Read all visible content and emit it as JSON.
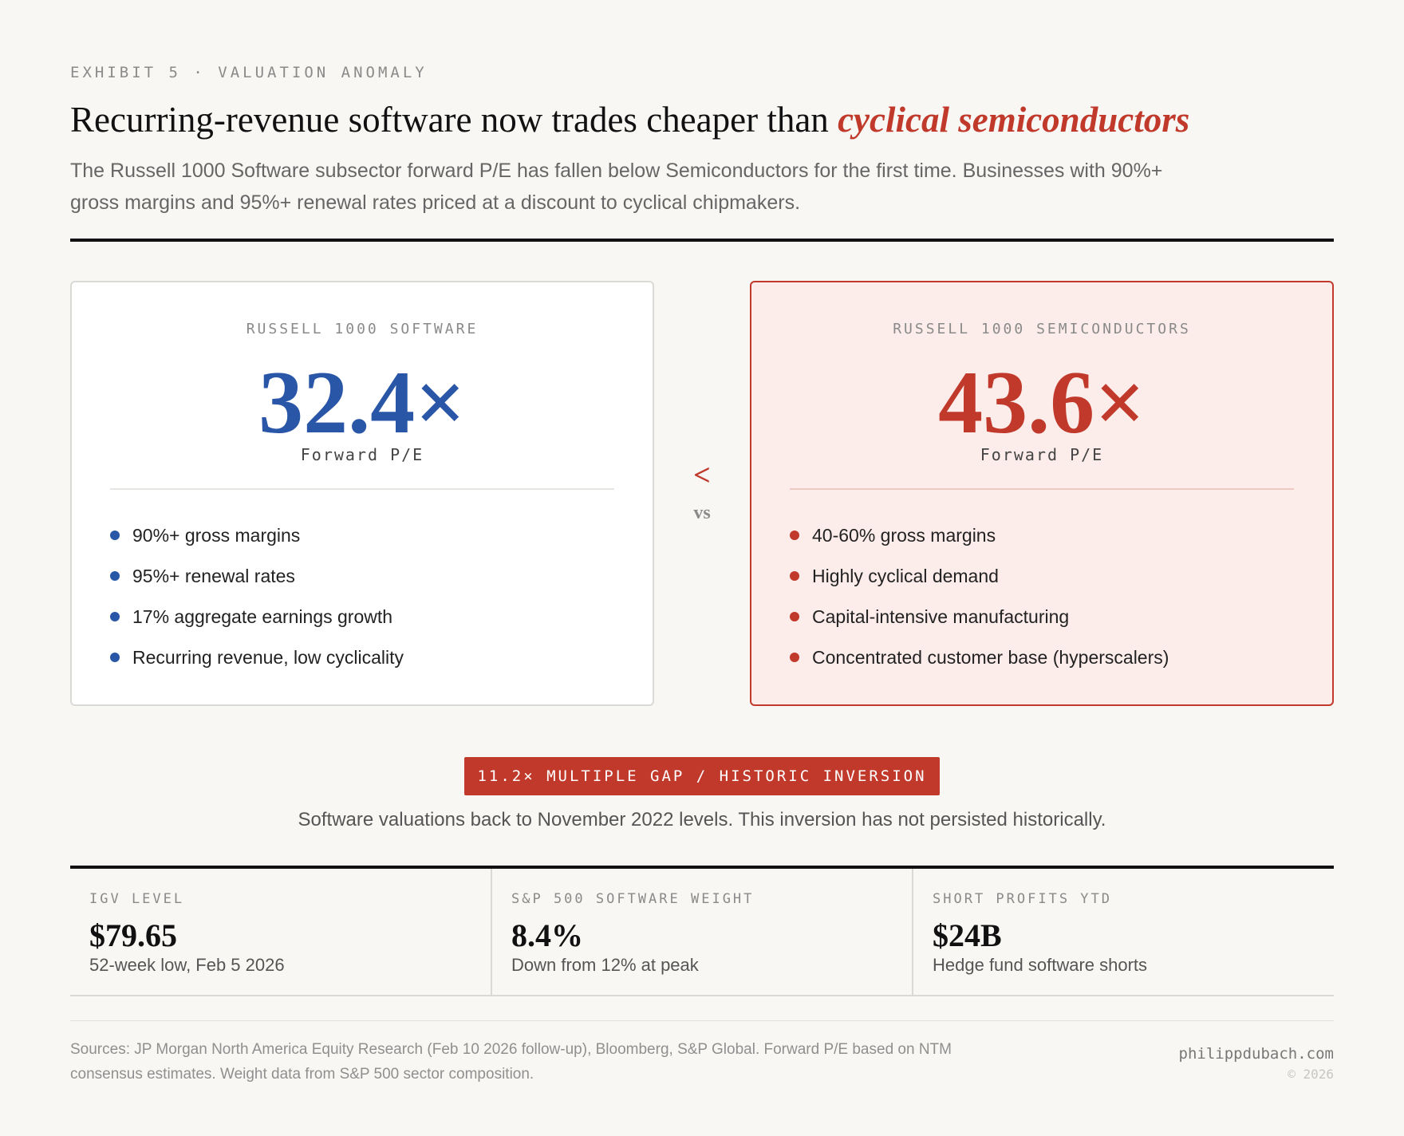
{
  "header": {
    "eyebrow": "EXHIBIT 5 · VALUATION ANOMALY",
    "headline_plain": "Recurring-revenue software now trades cheaper than ",
    "headline_accent": "cyclical semiconductors",
    "subhead": "The Russell 1000 Software subsector forward P/E has fallen below Semiconductors for the first time. Businesses with 90%+ gross margins and 95%+ renewal rates priced at a discount to cyclical chipmakers."
  },
  "comparison": {
    "left": {
      "label": "RUSSELL 1000 SOFTWARE",
      "value": "32.4×",
      "metric": "Forward P/E",
      "bullets": [
        "90%+ gross margins",
        "95%+ renewal rates",
        "17% aggregate earnings growth",
        "Recurring revenue, low cyclicality"
      ]
    },
    "right": {
      "label": "RUSSELL 1000 SEMICONDUCTORS",
      "value": "43.6×",
      "metric": "Forward P/E",
      "bullets": [
        "40-60% gross margins",
        "Highly cyclical demand",
        "Capital-intensive manufacturing",
        "Concentrated customer base (hyperscalers)"
      ]
    },
    "operator": "<",
    "vs": "vs"
  },
  "gap": {
    "badge": "11.2× MULTIPLE GAP / HISTORIC INVERSION",
    "note": "Software valuations back to November 2022 levels. This inversion has not persisted historically."
  },
  "stats": [
    {
      "label": "IGV LEVEL",
      "value": "$79.65",
      "note": "52-week low, Feb 5 2026"
    },
    {
      "label": "S&P 500 SOFTWARE WEIGHT",
      "value": "8.4%",
      "note": "Down from 12% at peak"
    },
    {
      "label": "SHORT PROFITS YTD",
      "value": "$24B",
      "note": "Hedge fund software shorts"
    }
  ],
  "footer": {
    "sources": "Sources: JP Morgan North America Equity Research (Feb 10 2026 follow-up), Bloomberg, S&P Global. Forward P/E based on NTM consensus estimates. Weight data from S&P 500 sector composition.",
    "site": "philippdubach.com",
    "copyright": "© 2026"
  },
  "colors": {
    "accent_red": "#c0392b",
    "software_blue": "#2a56a8",
    "background": "#f8f7f4"
  }
}
